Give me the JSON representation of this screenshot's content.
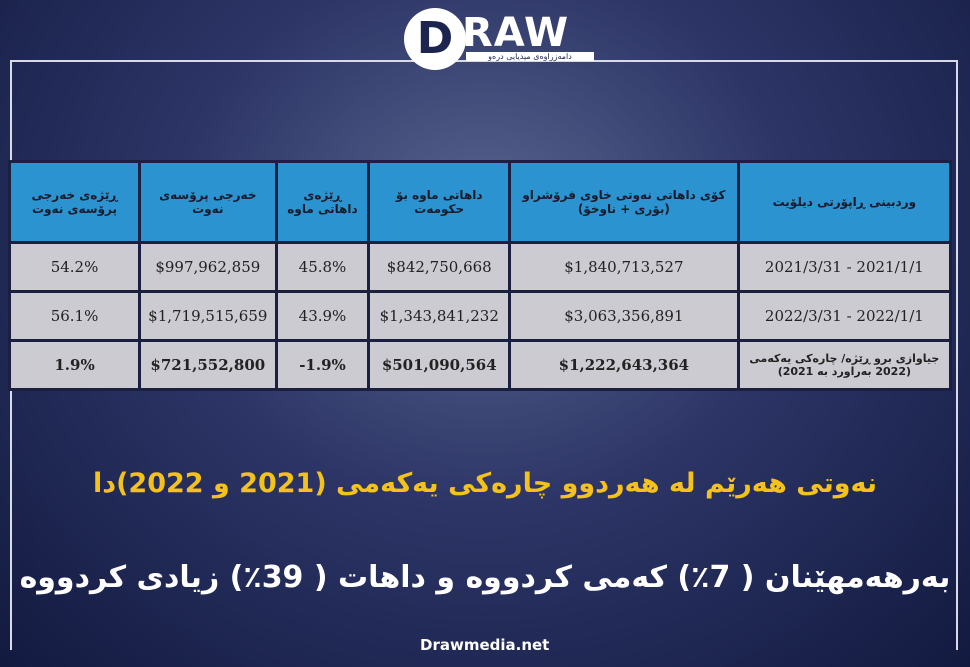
{
  "logo": {
    "letter": "D",
    "text": "RAW",
    "tagline": "دامەزراوەی میدیایی درەو"
  },
  "table": {
    "header": [
      "وردبینی ڕاپۆرتی دیلۆیت",
      "کۆی داهاتی نەوتی خاوی فرۆشراو (بۆری + ناوخۆ)",
      "داهاتی ماوە بۆ حکومەت",
      "ڕێژەی داهاتی ماوە",
      "خەرجی پرۆسەی نەوت",
      "ڕێژەی خەرجی پرۆسەی نەوت"
    ],
    "rows": [
      [
        "2021/3/31 - 2021/1/1",
        "$1,840,713,527",
        "$842,750,668",
        "45.8%",
        "$997,962,859",
        "54.2%"
      ],
      [
        "2022/3/31 - 2022/1/1",
        "$3,063,356,891",
        "$1,343,841,232",
        "43.9%",
        "$1,719,515,659",
        "56.1%"
      ],
      [
        "جیاوازی برو ڕێژە/ چارەکی یەکەمی (2022 بەراورد بە 2021)",
        "$1,222,643,364",
        "$501,090,564",
        "-1.9%",
        "$721,552,800",
        "1.9%"
      ]
    ]
  },
  "headline": "نەوتی هەرێم لە هەردوو چارەکی یەکەمی (2021 و 2022)دا",
  "subheadline": "بەرهەمهێنان ( 7٪) کەمی کردووە و داهات ( 39٪) زیادی کردووە",
  "footer": "Drawmedia.net"
}
